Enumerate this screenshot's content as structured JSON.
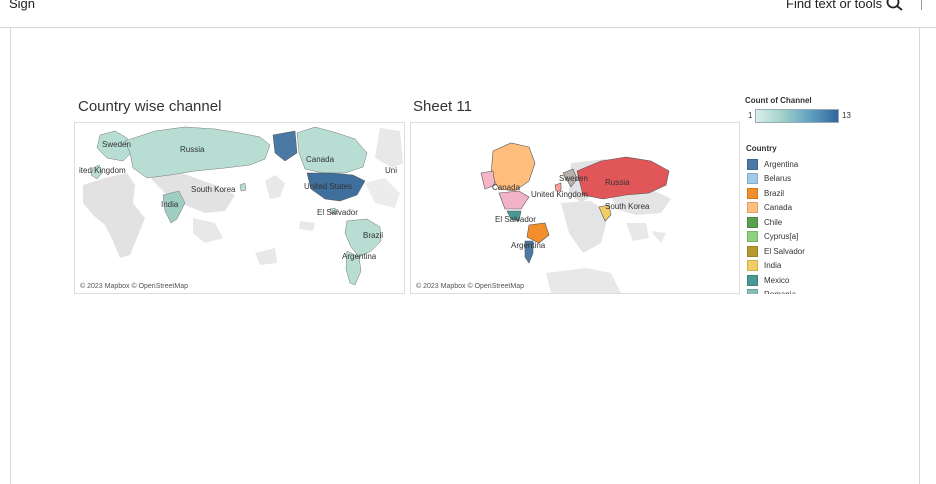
{
  "topbar": {
    "sign_label": "Sign",
    "find_label": "Find text or tools"
  },
  "sheets": {
    "left": {
      "title": "Country wise channel",
      "copyright": "© 2023 Mapbox © OpenStreetMap"
    },
    "right": {
      "title": "Sheet 11",
      "copyright": "© 2023 Mapbox © OpenStreetMap"
    }
  },
  "left_map_labels": {
    "sweden": "Sweden",
    "russia": "Russia",
    "uk": "ited Kingdom",
    "canada": "Canada",
    "uni": "Uni",
    "south_korea": "South Korea",
    "india": "India",
    "usa": "United States",
    "el_salvador": "El Salvador",
    "brazil": "Brazil",
    "argentina": "Argentina"
  },
  "right_map_labels": {
    "canada": "Canada",
    "sweden": "Sweden",
    "russia": "Russia",
    "uk": "United Kingdom",
    "south_korea": "South Korea",
    "el_salvador": "El Salvador",
    "argentina": "Argentina"
  },
  "legend": {
    "count_title": "Count of Channel",
    "count_min": "1",
    "count_max": "13",
    "country_title": "Country",
    "items": [
      {
        "label": "Argentina",
        "color": "#4e79a7"
      },
      {
        "label": "Belarus",
        "color": "#a0cbe8"
      },
      {
        "label": "Brazil",
        "color": "#f28e2b"
      },
      {
        "label": "Canada",
        "color": "#ffbe7d"
      },
      {
        "label": "Chile",
        "color": "#59a14f"
      },
      {
        "label": "Cyprus[a]",
        "color": "#8cd17d"
      },
      {
        "label": "El Salvador",
        "color": "#b6992d"
      },
      {
        "label": "India",
        "color": "#f1ce63"
      },
      {
        "label": "Mexico",
        "color": "#499894"
      },
      {
        "label": "Romania",
        "color": "#86bcb6"
      }
    ]
  }
}
